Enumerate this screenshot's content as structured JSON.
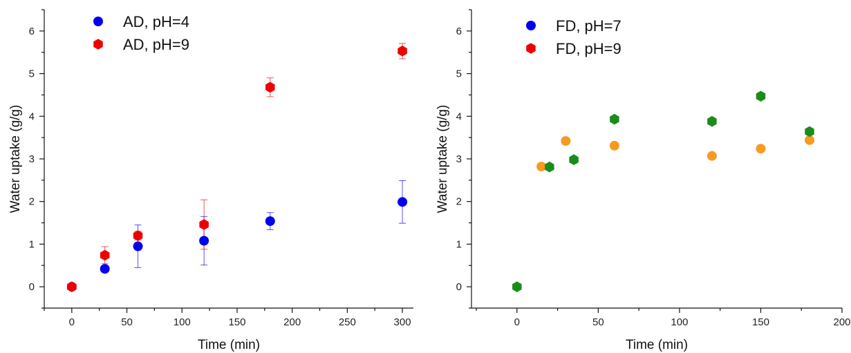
{
  "chart_data": [
    {
      "type": "scatter",
      "xlabel": "Time (min)",
      "ylabel": "Water uptake (g/g)",
      "xlim": [
        -25,
        310
      ],
      "ylim": [
        -0.5,
        6.5
      ],
      "xticks": [
        0,
        50,
        100,
        150,
        200,
        250,
        300
      ],
      "yticks": [
        0,
        1,
        2,
        3,
        4,
        5,
        6
      ],
      "legend_position": "top-left",
      "series": [
        {
          "name": "AD, pH=4",
          "color": "#0000ee",
          "marker": "circle",
          "points": [
            {
              "x": 0,
              "y": 0.0
            },
            {
              "x": 30,
              "y": 0.42,
              "err": 0.05
            },
            {
              "x": 60,
              "y": 0.95,
              "err": 0.5
            },
            {
              "x": 120,
              "y": 1.08,
              "err": 0.57
            },
            {
              "x": 180,
              "y": 1.54,
              "err": 0.2
            },
            {
              "x": 300,
              "y": 1.99,
              "err": 0.5
            }
          ]
        },
        {
          "name": "AD, pH=9",
          "color": "#ee0000",
          "marker": "hexagon",
          "points": [
            {
              "x": 0,
              "y": 0.0
            },
            {
              "x": 30,
              "y": 0.74,
              "err": 0.2
            },
            {
              "x": 60,
              "y": 1.2,
              "err": 0.1
            },
            {
              "x": 120,
              "y": 1.46,
              "err": 0.58
            },
            {
              "x": 180,
              "y": 4.68,
              "err": 0.22
            },
            {
              "x": 300,
              "y": 5.53,
              "err": 0.18
            }
          ]
        }
      ]
    },
    {
      "type": "scatter",
      "xlabel": "Time (min)",
      "ylabel": "Water uptake (g/g)",
      "xlim": [
        -28,
        200
      ],
      "ylim": [
        -0.5,
        6.5
      ],
      "xticks": [
        0,
        50,
        100,
        150,
        200
      ],
      "yticks": [
        0,
        1,
        2,
        3,
        4,
        5,
        6
      ],
      "legend_position": "top-left",
      "series": [
        {
          "name": "FD, pH=7",
          "color": "#0000ee",
          "marker": "circle",
          "legend_only": true,
          "points": []
        },
        {
          "name": "FD, pH=9",
          "color": "#ee0000",
          "marker": "hexagon",
          "legend_only": true,
          "points": []
        },
        {
          "name": "",
          "color": "#f79a22",
          "marker": "circle",
          "points": [
            {
              "x": 15,
              "y": 2.82
            },
            {
              "x": 30,
              "y": 3.42
            },
            {
              "x": 60,
              "y": 3.31
            },
            {
              "x": 120,
              "y": 3.07
            },
            {
              "x": 150,
              "y": 3.24
            },
            {
              "x": 180,
              "y": 3.44
            }
          ]
        },
        {
          "name": "",
          "color": "#1a8c1a",
          "marker": "hexagon",
          "points": [
            {
              "x": 0,
              "y": 0.0
            },
            {
              "x": 20,
              "y": 2.81
            },
            {
              "x": 35,
              "y": 2.98
            },
            {
              "x": 60,
              "y": 3.93
            },
            {
              "x": 120,
              "y": 3.88
            },
            {
              "x": 150,
              "y": 4.47
            },
            {
              "x": 180,
              "y": 3.64
            }
          ]
        }
      ]
    }
  ]
}
